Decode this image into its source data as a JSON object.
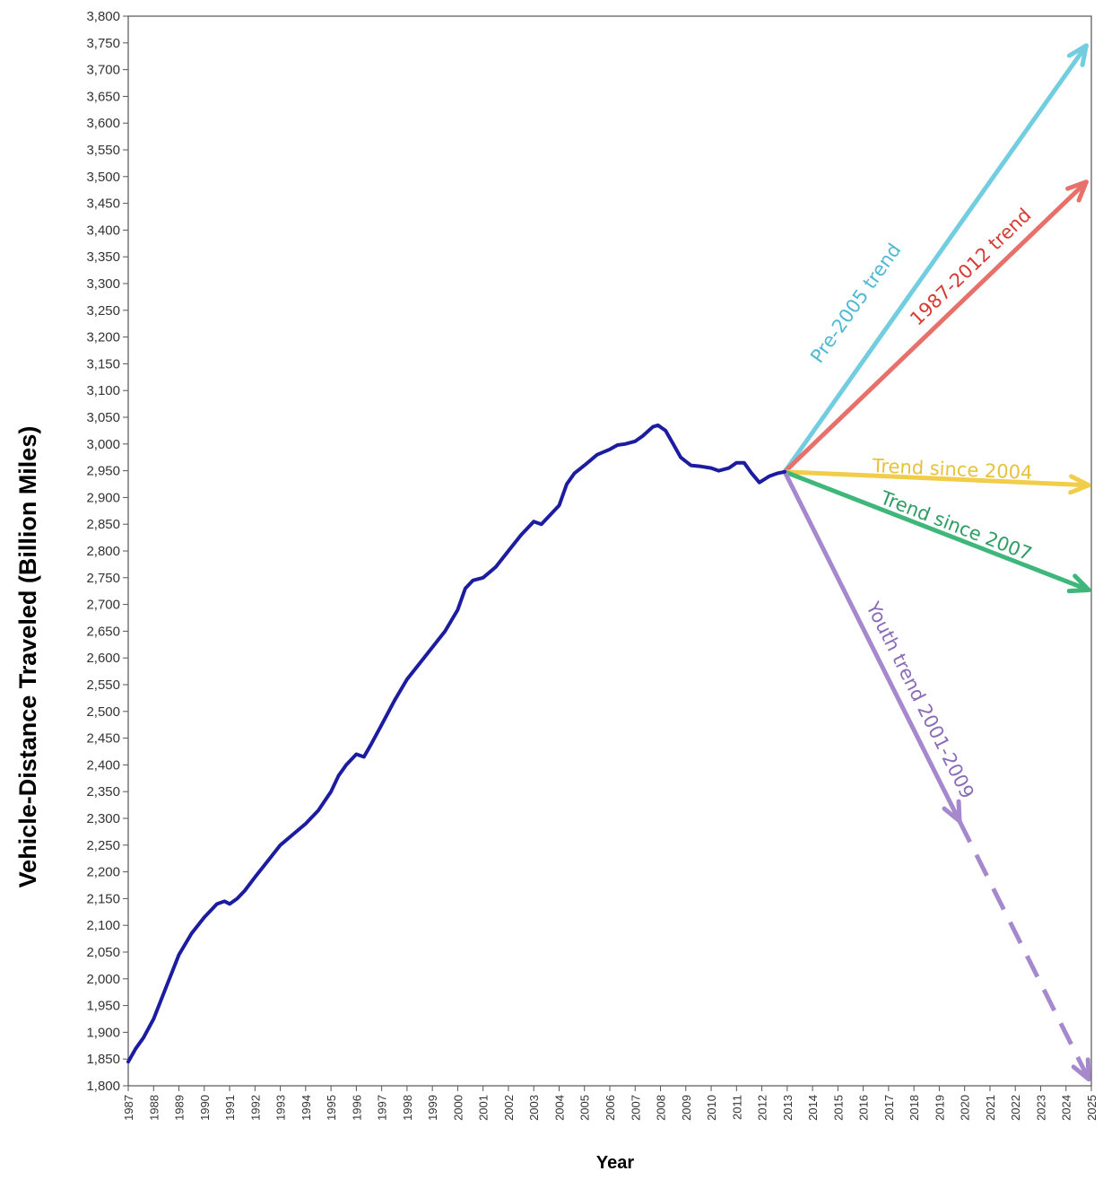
{
  "chart_data": {
    "type": "line",
    "title": "",
    "xlabel": "Year",
    "ylabel": "Vehicle-Distance Traveled (Billion Miles)",
    "xlim": [
      1987,
      2025
    ],
    "ylim": [
      1800,
      3800
    ],
    "grid": false,
    "y_ticks": [
      1800,
      1850,
      1900,
      1950,
      2000,
      2050,
      2100,
      2150,
      2200,
      2250,
      2300,
      2350,
      2400,
      2450,
      2500,
      2550,
      2600,
      2650,
      2700,
      2750,
      2800,
      2850,
      2900,
      2950,
      3000,
      3050,
      3100,
      3150,
      3200,
      3250,
      3300,
      3350,
      3400,
      3450,
      3500,
      3550,
      3600,
      3650,
      3700,
      3750,
      3800
    ],
    "y_tick_labels": [
      "1,800",
      "1,850",
      "1,900",
      "1,950",
      "2,000",
      "2,050",
      "2,100",
      "2,150",
      "2,200",
      "2,250",
      "2,300",
      "2,350",
      "2,400",
      "2,450",
      "2,500",
      "2,550",
      "2,600",
      "2,650",
      "2,700",
      "2,750",
      "2,800",
      "2,850",
      "2,900",
      "2,950",
      "3,000",
      "3,050",
      "3,100",
      "3,150",
      "3,200",
      "3,250",
      "3,300",
      "3,350",
      "3,400",
      "3,450",
      "3,500",
      "3,550",
      "3,600",
      "3,650",
      "3,700",
      "3,750",
      "3,800"
    ],
    "x_ticks": [
      1987,
      1988,
      1989,
      1990,
      1991,
      1992,
      1993,
      1994,
      1995,
      1996,
      1997,
      1998,
      1999,
      2000,
      2001,
      2002,
      2003,
      2004,
      2005,
      2006,
      2007,
      2008,
      2009,
      2010,
      2011,
      2012,
      2013,
      2014,
      2015,
      2016,
      2017,
      2018,
      2019,
      2020,
      2021,
      2022,
      2023,
      2024,
      2025
    ],
    "x_tick_labels": [
      "1987",
      "1988",
      "1989",
      "1990",
      "1991",
      "1992",
      "1993",
      "1994",
      "1995",
      "1996",
      "1997",
      "1998",
      "1999",
      "2000",
      "2001",
      "2002",
      "2003",
      "2004",
      "2005",
      "2006",
      "2007",
      "2008",
      "2009",
      "2010",
      "2011",
      "2012",
      "2013",
      "2014",
      "2015",
      "2016",
      "2017",
      "2018",
      "2019",
      "2020",
      "2021",
      "2022",
      "2023",
      "2024",
      "2025"
    ],
    "series": [
      {
        "name": "",
        "color": "#1c1ca0",
        "x": [
          1987.0,
          1987.3,
          1987.6,
          1988.0,
          1988.5,
          1989.0,
          1989.5,
          1990.0,
          1990.5,
          1990.8,
          1991.0,
          1991.3,
          1991.6,
          1992.0,
          1992.5,
          1993.0,
          1993.5,
          1994.0,
          1994.5,
          1995.0,
          1995.3,
          1995.6,
          1996.0,
          1996.3,
          1996.6,
          1997.0,
          1997.5,
          1998.0,
          1998.5,
          1999.0,
          1999.5,
          2000.0,
          2000.3,
          2000.6,
          2001.0,
          2001.5,
          2002.0,
          2002.5,
          2003.0,
          2003.3,
          2003.6,
          2004.0,
          2004.3,
          2004.6,
          2005.0,
          2005.5,
          2006.0,
          2006.3,
          2006.6,
          2007.0,
          2007.3,
          2007.7,
          2007.9,
          2008.2,
          2008.5,
          2008.8,
          2009.2,
          2009.6,
          2010.0,
          2010.3,
          2010.7,
          2011.0,
          2011.3,
          2011.6,
          2011.9,
          2012.3,
          2012.6,
          2012.9
        ],
        "y": [
          1845,
          1870,
          1890,
          1925,
          1985,
          2045,
          2085,
          2115,
          2140,
          2145,
          2140,
          2150,
          2165,
          2190,
          2220,
          2250,
          2270,
          2290,
          2315,
          2350,
          2380,
          2400,
          2420,
          2415,
          2440,
          2475,
          2520,
          2560,
          2590,
          2620,
          2650,
          2690,
          2730,
          2745,
          2750,
          2770,
          2800,
          2830,
          2855,
          2850,
          2865,
          2885,
          2925,
          2945,
          2960,
          2980,
          2990,
          2998,
          3000,
          3005,
          3015,
          3032,
          3035,
          3025,
          3000,
          2975,
          2960,
          2958,
          2955,
          2950,
          2955,
          2965,
          2965,
          2945,
          2928,
          2940,
          2945,
          2948
        ]
      }
    ],
    "trend_lines": [
      {
        "name": "Pre-2005 trend",
        "color": "#72cde0",
        "label_color": "#4fb8d3",
        "from": [
          2012.9,
          2948
        ],
        "to": [
          2024.8,
          3745
        ],
        "dashed_from": null
      },
      {
        "name": "1987-2012 trend",
        "color": "#e8706a",
        "label_color": "#d63a32",
        "from": [
          2012.9,
          2948
        ],
        "to": [
          2024.8,
          3490
        ],
        "dashed_from": null
      },
      {
        "name": "Trend since 2004",
        "color": "#f2cd4a",
        "label_color": "#e6c23a",
        "from": [
          2012.9,
          2948
        ],
        "to": [
          2024.9,
          2923
        ],
        "dashed_from": null
      },
      {
        "name": "Trend since 2007",
        "color": "#3fb77a",
        "label_color": "#2e9c63",
        "from": [
          2012.9,
          2948
        ],
        "to": [
          2024.9,
          2727
        ],
        "dashed_from": null
      },
      {
        "name": "Youth trend 2001-2009",
        "color": "#a589cc",
        "label_color": "#8a6bb8",
        "from": [
          2012.9,
          2948
        ],
        "to": [
          2024.9,
          1812
        ],
        "dashed_from": 2019.8
      }
    ]
  }
}
